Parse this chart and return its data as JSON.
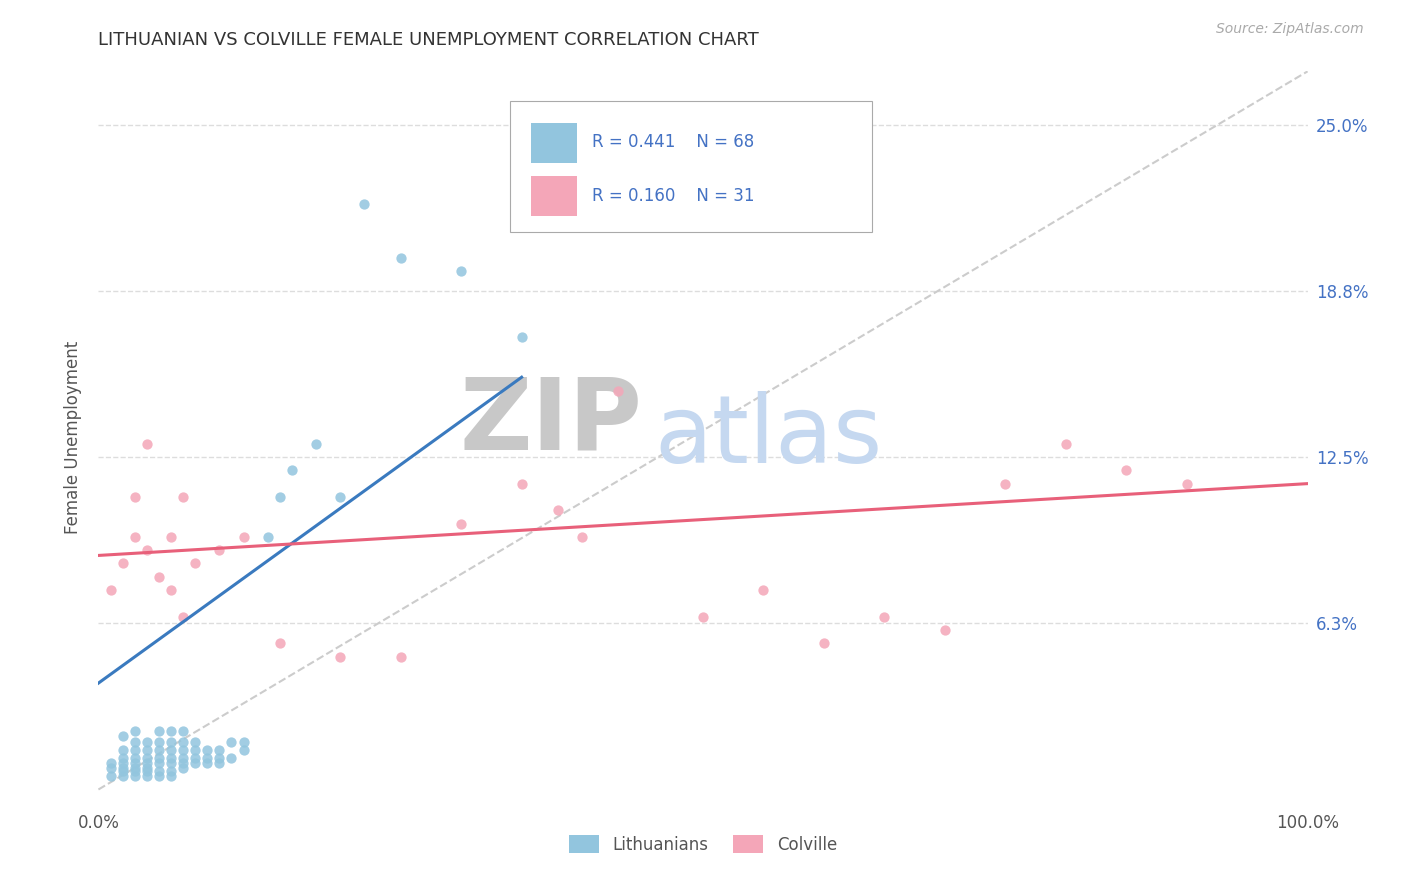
{
  "title": "LITHUANIAN VS COLVILLE FEMALE UNEMPLOYMENT CORRELATION CHART",
  "source": "Source: ZipAtlas.com",
  "ylabel": "Female Unemployment",
  "ytick_vals": [
    0.0,
    0.0625,
    0.125,
    0.1875,
    0.25
  ],
  "ytick_labels": [
    "",
    "6.3%",
    "12.5%",
    "18.8%",
    "25.0%"
  ],
  "xlim": [
    0.0,
    1.0
  ],
  "ylim": [
    -0.005,
    0.27
  ],
  "R_blue": 0.441,
  "N_blue": 68,
  "R_pink": 0.16,
  "N_pink": 31,
  "blue_color": "#92c5de",
  "pink_color": "#f4a6b8",
  "blue_line_color": "#3a7abf",
  "pink_line_color": "#e8607a",
  "diag_color": "#cccccc",
  "legend_label_blue": "Lithuanians",
  "legend_label_pink": "Colville",
  "background_color": "#ffffff",
  "grid_color": "#dddddd",
  "title_color": "#333333",
  "source_color": "#aaaaaa",
  "axis_label_color": "#555555",
  "right_tick_color": "#4472c4",
  "blue_scatter_x": [
    0.01,
    0.01,
    0.01,
    0.02,
    0.02,
    0.02,
    0.02,
    0.02,
    0.02,
    0.02,
    0.03,
    0.03,
    0.03,
    0.03,
    0.03,
    0.03,
    0.03,
    0.03,
    0.04,
    0.04,
    0.04,
    0.04,
    0.04,
    0.04,
    0.04,
    0.05,
    0.05,
    0.05,
    0.05,
    0.05,
    0.05,
    0.05,
    0.06,
    0.06,
    0.06,
    0.06,
    0.06,
    0.06,
    0.06,
    0.07,
    0.07,
    0.07,
    0.07,
    0.07,
    0.07,
    0.08,
    0.08,
    0.08,
    0.08,
    0.09,
    0.09,
    0.09,
    0.1,
    0.1,
    0.1,
    0.11,
    0.11,
    0.12,
    0.12,
    0.14,
    0.15,
    0.16,
    0.18,
    0.2,
    0.22,
    0.25,
    0.3,
    0.35
  ],
  "blue_scatter_y": [
    0.005,
    0.008,
    0.01,
    0.005,
    0.007,
    0.008,
    0.01,
    0.012,
    0.015,
    0.02,
    0.005,
    0.007,
    0.008,
    0.01,
    0.012,
    0.015,
    0.018,
    0.022,
    0.005,
    0.007,
    0.008,
    0.01,
    0.012,
    0.015,
    0.018,
    0.005,
    0.007,
    0.01,
    0.012,
    0.015,
    0.018,
    0.022,
    0.005,
    0.007,
    0.01,
    0.012,
    0.015,
    0.018,
    0.022,
    0.008,
    0.01,
    0.012,
    0.015,
    0.018,
    0.022,
    0.01,
    0.012,
    0.015,
    0.018,
    0.01,
    0.012,
    0.015,
    0.01,
    0.012,
    0.015,
    0.012,
    0.018,
    0.015,
    0.018,
    0.095,
    0.11,
    0.12,
    0.13,
    0.11,
    0.22,
    0.2,
    0.195,
    0.17
  ],
  "pink_scatter_x": [
    0.01,
    0.02,
    0.03,
    0.03,
    0.04,
    0.04,
    0.05,
    0.06,
    0.06,
    0.07,
    0.07,
    0.08,
    0.1,
    0.12,
    0.15,
    0.2,
    0.25,
    0.3,
    0.35,
    0.38,
    0.4,
    0.43,
    0.5,
    0.55,
    0.6,
    0.65,
    0.7,
    0.75,
    0.8,
    0.85,
    0.9
  ],
  "pink_scatter_y": [
    0.075,
    0.085,
    0.095,
    0.11,
    0.09,
    0.13,
    0.08,
    0.095,
    0.075,
    0.11,
    0.065,
    0.085,
    0.09,
    0.095,
    0.055,
    0.05,
    0.05,
    0.1,
    0.115,
    0.105,
    0.095,
    0.15,
    0.065,
    0.075,
    0.055,
    0.065,
    0.06,
    0.115,
    0.13,
    0.12,
    0.115
  ],
  "blue_line_x": [
    0.0,
    0.35
  ],
  "blue_line_y": [
    0.04,
    0.155
  ],
  "pink_line_x": [
    0.0,
    1.0
  ],
  "pink_line_y": [
    0.088,
    0.115
  ],
  "diag_line_x": [
    0.0,
    1.0
  ],
  "diag_line_y": [
    0.0,
    0.27
  ]
}
